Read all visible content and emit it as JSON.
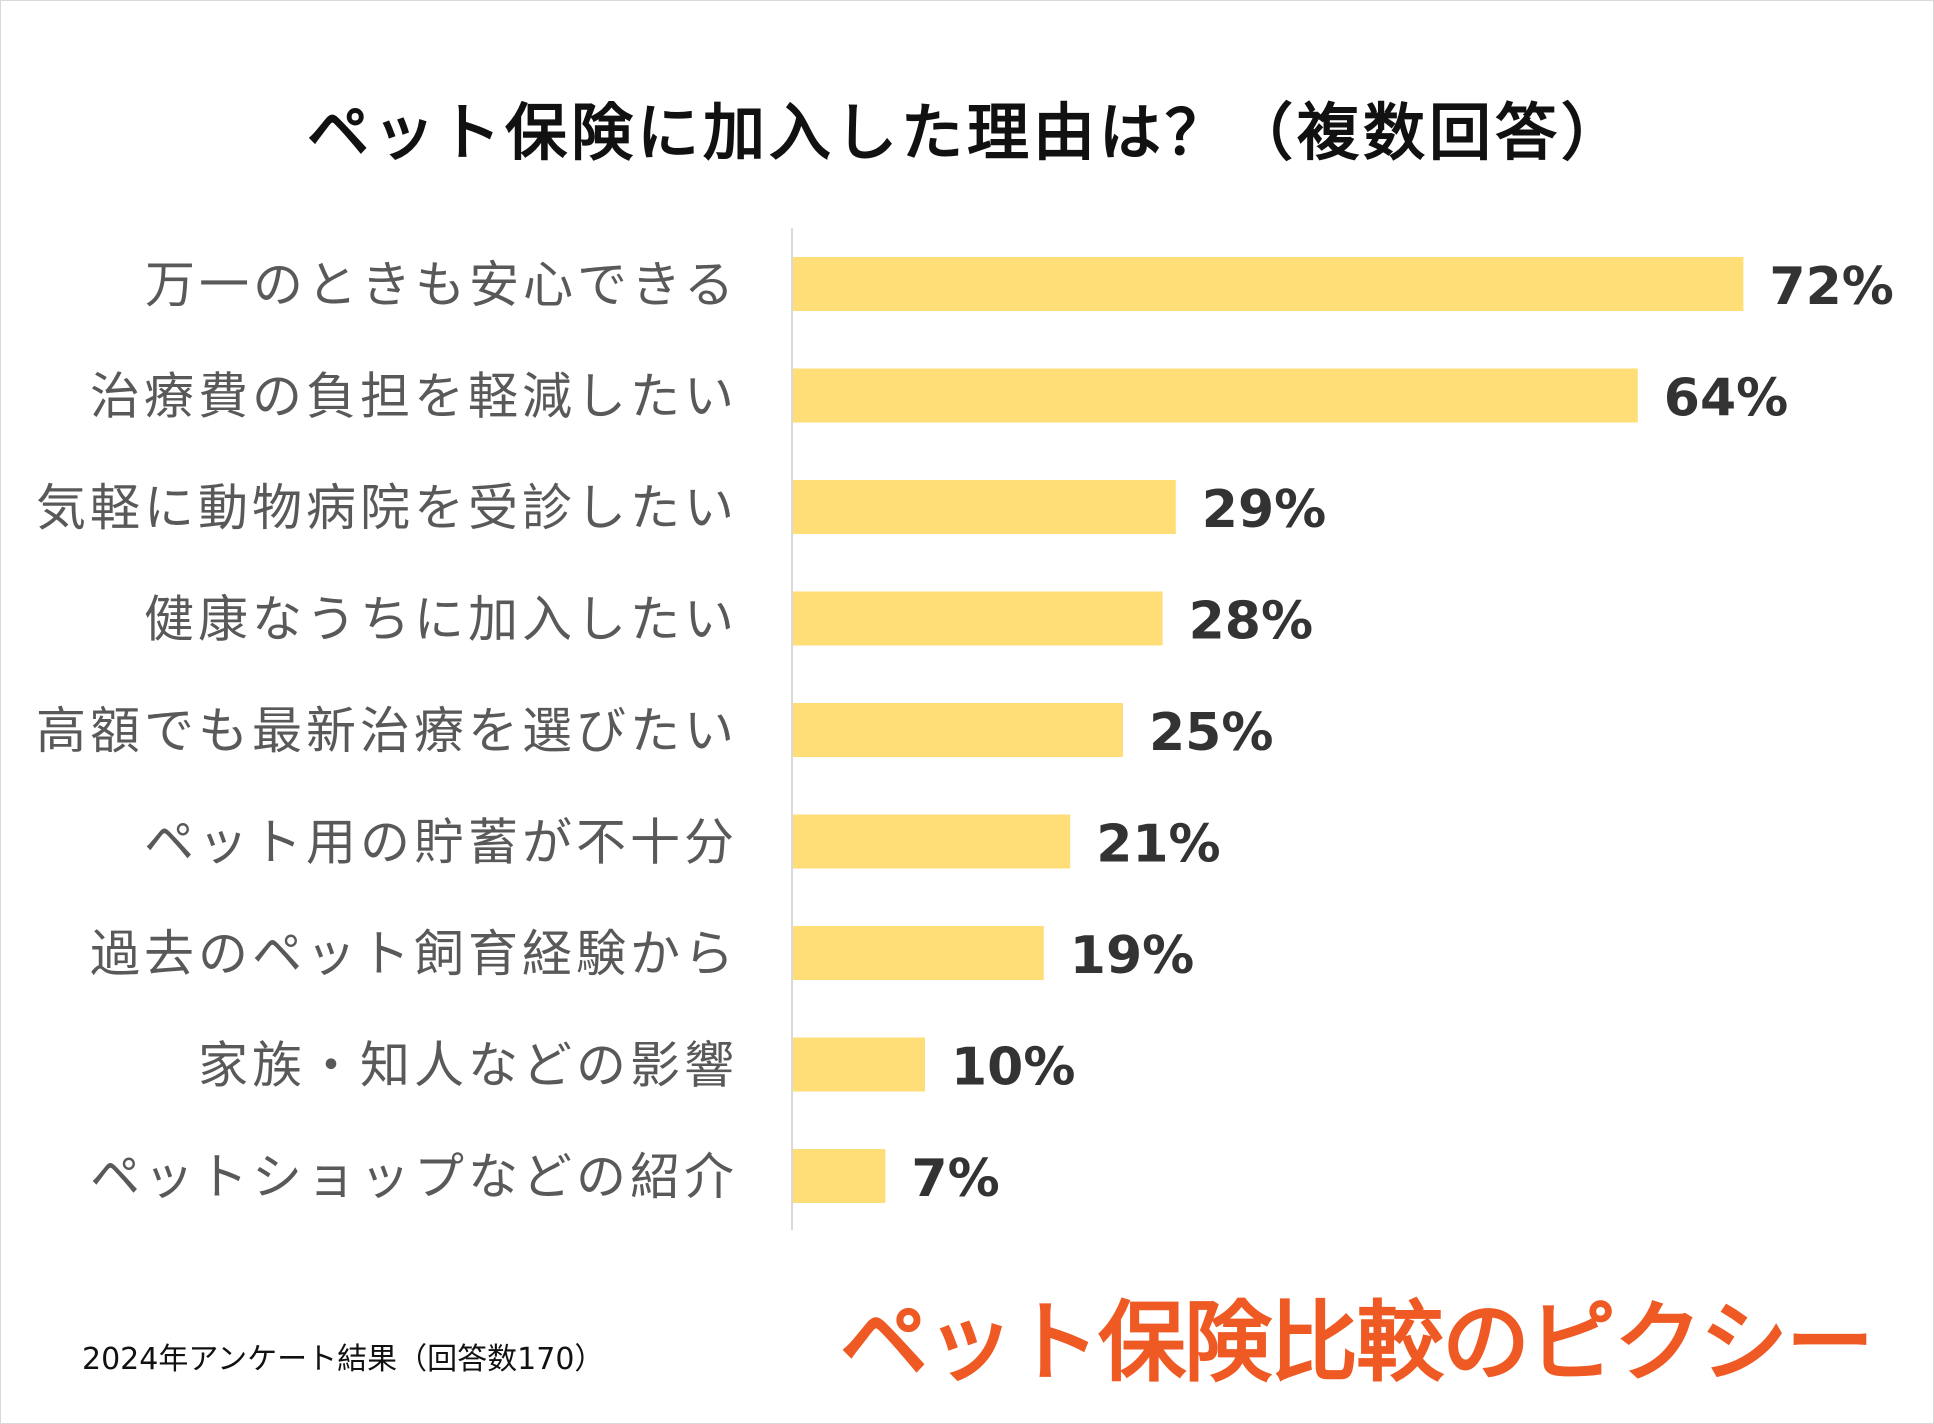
{
  "chart_data": {
    "type": "bar",
    "orientation": "horizontal",
    "title": "ペット保険に加入した理由は？（複数回答）",
    "categories": [
      "万一のときも安心できる",
      "治療費の負担を軽減したい",
      "気軽に動物病院を受診したい",
      "健康なうちに加入したい",
      "高額でも最新治療を選びたい",
      "ペット用の貯蓄が不十分",
      "過去のペット飼育経験から",
      "家族・知人などの影響",
      "ペットショップなどの紹介"
    ],
    "values": [
      72,
      64,
      29,
      28,
      25,
      21,
      19,
      10,
      7
    ],
    "value_labels": [
      "72%",
      "64%",
      "29%",
      "28%",
      "25%",
      "21%",
      "19%",
      "10%",
      "7%"
    ],
    "unit": "%",
    "xlim": [
      0,
      100
    ],
    "bar_color": "#ffdd77",
    "grid": false
  },
  "footnote": "2024年アンケート結果（回答数170）",
  "brand": {
    "name": "ペット保険比較のピクシー",
    "color": "#ef5a24"
  }
}
